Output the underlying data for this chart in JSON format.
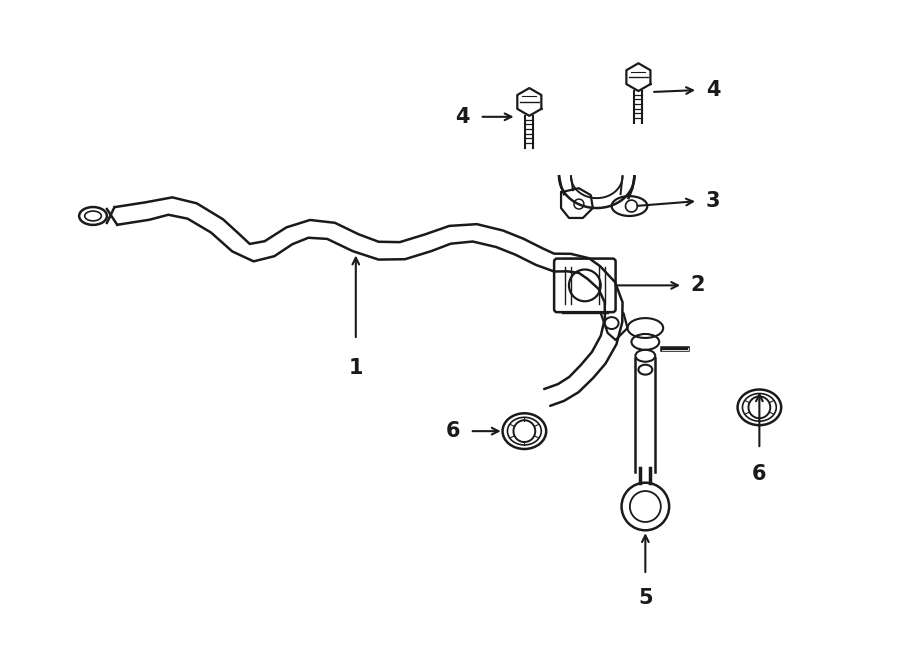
{
  "background_color": "#ffffff",
  "line_color": "#1a1a1a",
  "lw_bar": 1.8,
  "lw_detail": 1.4,
  "figsize": [
    9.0,
    6.61
  ],
  "dpi": 100,
  "label_fontsize": 15,
  "label_fontweight": "bold"
}
